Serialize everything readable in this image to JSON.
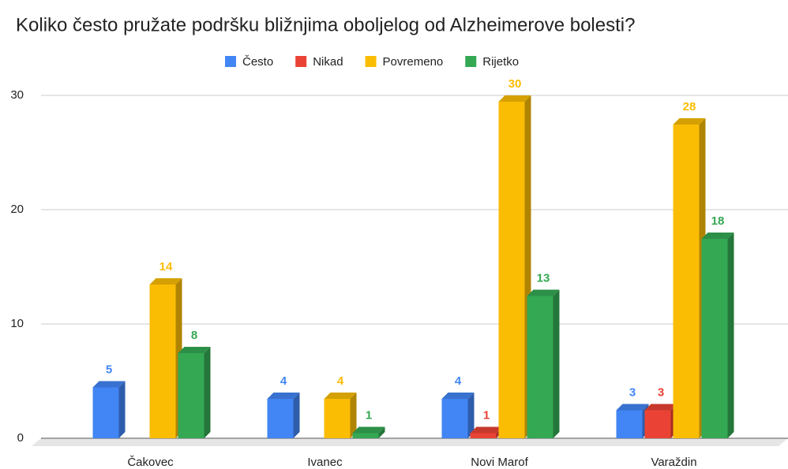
{
  "chart_data": {
    "type": "bar3d",
    "title": "Koliko često pružate podršku bližnjima oboljelog od Alzheimerove bolesti?",
    "categories": [
      "Čakovec",
      "Ivanec",
      "Novi Marof",
      "Varaždin"
    ],
    "series": [
      {
        "name": "Često",
        "color": "#4285f4",
        "values": [
          5,
          4,
          4,
          3
        ]
      },
      {
        "name": "Nikad",
        "color": "#ea4335",
        "values": [
          null,
          null,
          1,
          3
        ]
      },
      {
        "name": "Povremeno",
        "color": "#fbbc04",
        "values": [
          14,
          4,
          30,
          28
        ]
      },
      {
        "name": "Rijetko",
        "color": "#34a853",
        "values": [
          8,
          1,
          13,
          18
        ]
      }
    ],
    "ylim": [
      0,
      30
    ],
    "yticks": [
      0,
      10,
      20,
      30
    ],
    "grid": true,
    "legend": "top"
  }
}
